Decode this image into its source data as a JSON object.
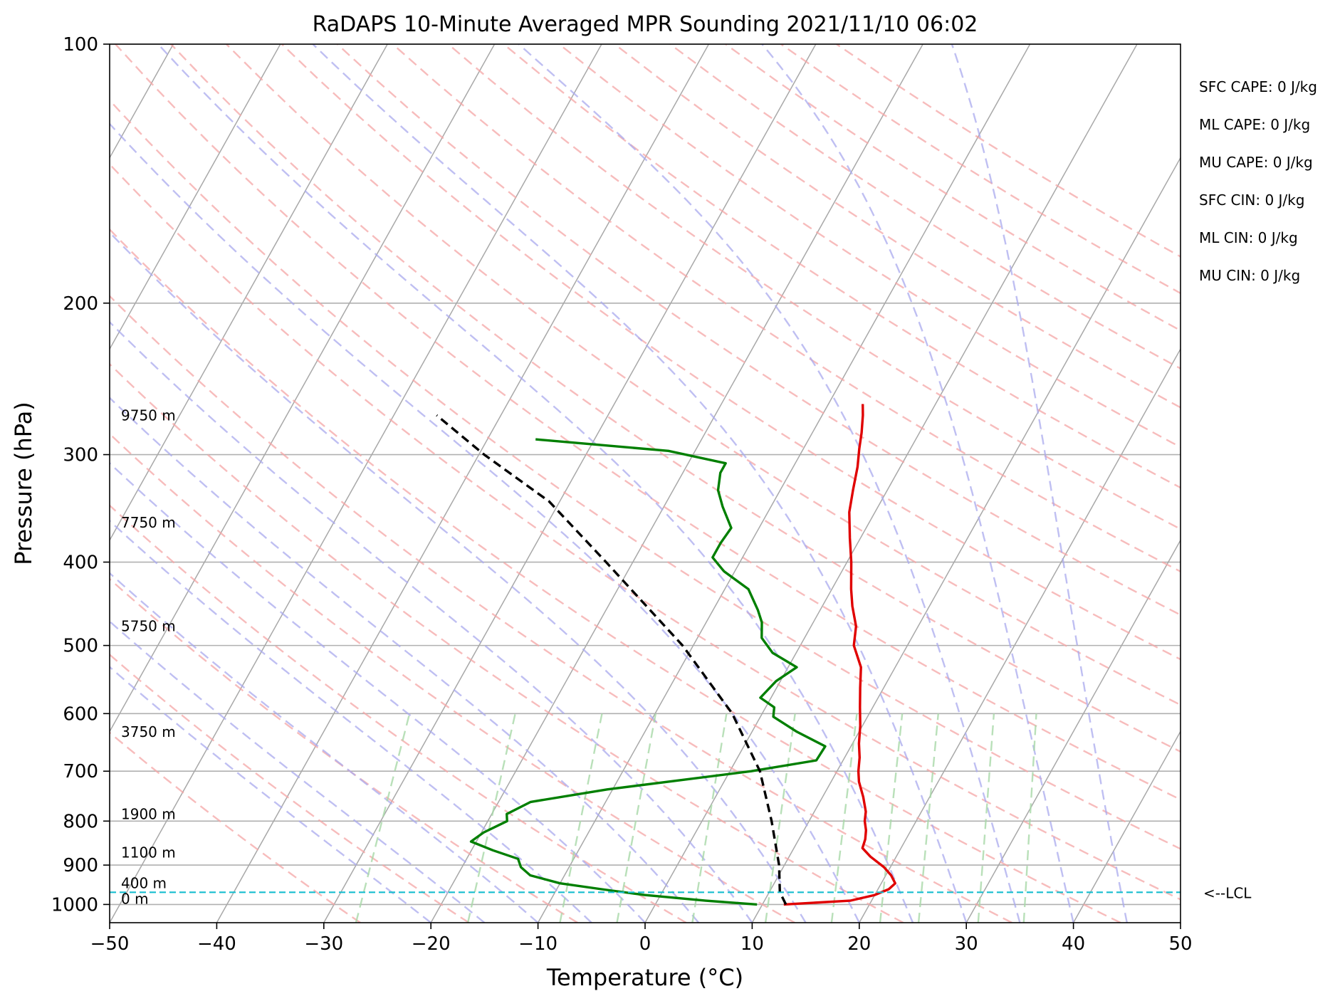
{
  "chart_data": {
    "type": "line",
    "title": "RaDAPS 10-Minute Averaged MPR Sounding 2021/11/10 06:02",
    "xlabel": "Temperature (°C)",
    "ylabel": "Pressure (hPa)",
    "xlim": [
      -50,
      50
    ],
    "ylim": [
      1050,
      100
    ],
    "y_scale": "log",
    "grid": true,
    "x_ticks": [
      -50,
      -40,
      -30,
      -20,
      -10,
      0,
      10,
      20,
      30,
      40,
      50
    ],
    "x_tick_labels": [
      "−50",
      "−40",
      "−30",
      "−20",
      "−10",
      "0",
      "10",
      "20",
      "30",
      "40",
      "50"
    ],
    "y_ticks": [
      100,
      200,
      300,
      400,
      500,
      600,
      700,
      800,
      900,
      1000
    ],
    "y_tick_labels": [
      "100",
      "200",
      "300",
      "400",
      "500",
      "600",
      "700",
      "800",
      "900",
      "1000"
    ],
    "stats": [
      "SFC CAPE: 0 J/kg",
      "ML CAPE: 0 J/kg",
      "MU CAPE: 0 J/kg",
      "SFC CIN: 0 J/kg",
      "ML CIN: 0 J/kg",
      "MU CIN: 0 J/kg"
    ],
    "height_labels": [
      {
        "p": 985,
        "text": "0 m"
      },
      {
        "p": 945,
        "text": "400 m"
      },
      {
        "p": 870,
        "text": "1100 m"
      },
      {
        "p": 785,
        "text": "1900 m"
      },
      {
        "p": 630,
        "text": "3750 m"
      },
      {
        "p": 475,
        "text": "5750 m"
      },
      {
        "p": 360,
        "text": "7750 m"
      },
      {
        "p": 270,
        "text": "9750 m"
      }
    ],
    "lcl": {
      "p": 968,
      "label": "<--LCL"
    },
    "series": [
      {
        "color": "#e00000",
        "points": [
          [
            1000,
            12.0
          ],
          [
            990,
            18.0
          ],
          [
            975,
            20.0
          ],
          [
            960,
            21.0
          ],
          [
            945,
            21.3
          ],
          [
            925,
            20.5
          ],
          [
            905,
            19.4
          ],
          [
            880,
            17.6
          ],
          [
            860,
            16.4
          ],
          [
            840,
            16.2
          ],
          [
            820,
            15.8
          ],
          [
            800,
            15.2
          ],
          [
            780,
            14.8
          ],
          [
            750,
            13.8
          ],
          [
            720,
            12.6
          ],
          [
            700,
            12.0
          ],
          [
            675,
            11.4
          ],
          [
            650,
            10.6
          ],
          [
            620,
            9.8
          ],
          [
            590,
            8.8
          ],
          [
            560,
            7.8
          ],
          [
            530,
            6.8
          ],
          [
            500,
            5.0
          ],
          [
            475,
            4.2
          ],
          [
            450,
            2.8
          ],
          [
            430,
            1.8
          ],
          [
            400,
            0.4
          ],
          [
            375,
            -1.0
          ],
          [
            350,
            -2.4
          ],
          [
            330,
            -3.2
          ],
          [
            310,
            -4.0
          ],
          [
            295,
            -4.8
          ],
          [
            283,
            -5.4
          ],
          [
            270,
            -6.2
          ],
          [
            262,
            -6.8
          ]
        ]
      },
      {
        "color": "#007f00",
        "points": [
          [
            1000,
            9.5
          ],
          [
            990,
            4.5
          ],
          [
            975,
            -1.5
          ],
          [
            960,
            -5.8
          ],
          [
            945,
            -10.0
          ],
          [
            925,
            -13.2
          ],
          [
            905,
            -14.5
          ],
          [
            885,
            -15.2
          ],
          [
            865,
            -18.0
          ],
          [
            845,
            -20.5
          ],
          [
            825,
            -19.8
          ],
          [
            800,
            -18.2
          ],
          [
            785,
            -18.6
          ],
          [
            760,
            -17.0
          ],
          [
            735,
            -10.5
          ],
          [
            700,
            2.0
          ],
          [
            680,
            7.5
          ],
          [
            655,
            7.6
          ],
          [
            630,
            4.2
          ],
          [
            605,
            1.2
          ],
          [
            590,
            0.8
          ],
          [
            575,
            -1.0
          ],
          [
            550,
            -0.4
          ],
          [
            530,
            0.8
          ],
          [
            510,
            -2.2
          ],
          [
            490,
            -4.0
          ],
          [
            470,
            -4.8
          ],
          [
            455,
            -5.8
          ],
          [
            430,
            -7.8
          ],
          [
            410,
            -11.0
          ],
          [
            395,
            -12.8
          ],
          [
            380,
            -12.8
          ],
          [
            365,
            -12.6
          ],
          [
            345,
            -14.5
          ],
          [
            330,
            -15.8
          ],
          [
            315,
            -16.5
          ],
          [
            307,
            -16.5
          ],
          [
            297,
            -22.5
          ],
          [
            288,
            -35.5
          ]
        ]
      },
      {
        "color": "#000000",
        "dashed": true,
        "points": [
          [
            1000,
            12.2
          ],
          [
            968,
            11.0
          ],
          [
            900,
            9.5
          ],
          [
            800,
            6.5
          ],
          [
            700,
            2.8
          ],
          [
            600,
            -2.8
          ],
          [
            500,
            -11.0
          ],
          [
            400,
            -22.5
          ],
          [
            340,
            -31.0
          ],
          [
            300,
            -39.5
          ],
          [
            270,
            -46.0
          ]
        ]
      }
    ]
  }
}
